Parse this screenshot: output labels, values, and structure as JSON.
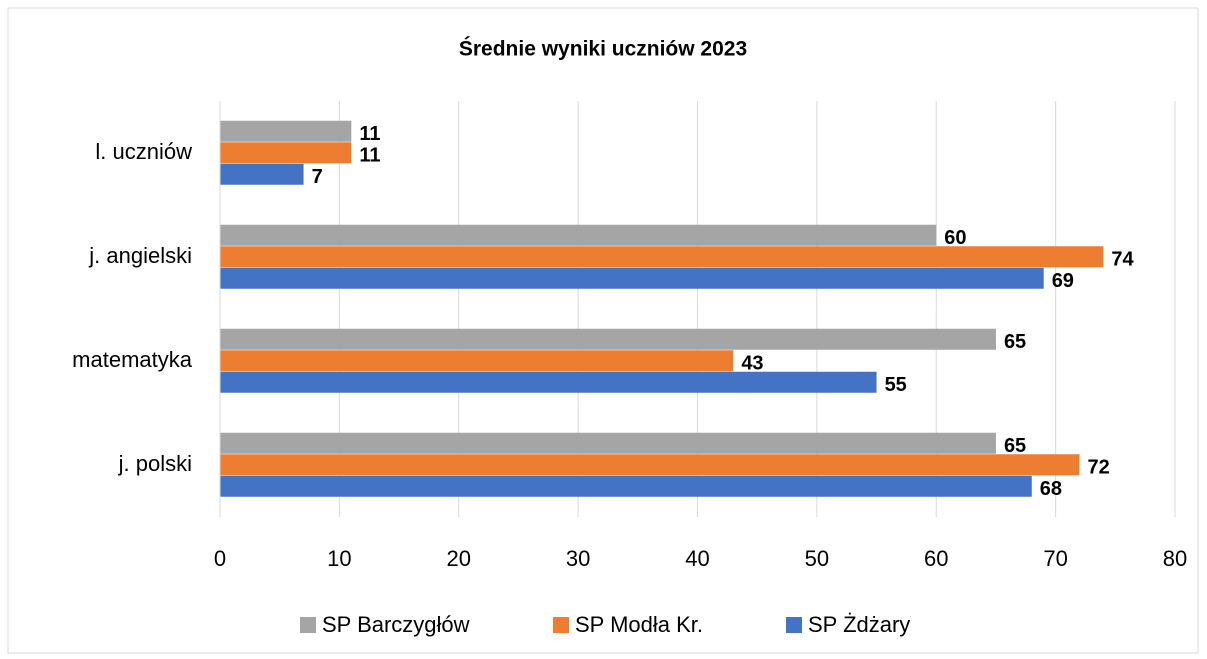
{
  "chart_data": {
    "type": "bar",
    "orientation": "horizontal",
    "title": "Średnie wyniki uczniów 2023",
    "categories": [
      "l. uczniów",
      "j. angielski",
      "matematyka",
      "j. polski"
    ],
    "series": [
      {
        "name": "SP Barczygłów",
        "color": "#a5a5a5",
        "values": [
          11,
          60,
          65,
          65
        ]
      },
      {
        "name": "SP Modła Kr.",
        "color": "#ed7d31",
        "values": [
          11,
          74,
          43,
          72
        ]
      },
      {
        "name": "SP Żdżary",
        "color": "#4472c4",
        "values": [
          7,
          69,
          55,
          68
        ]
      }
    ],
    "xlim": [
      0,
      80
    ],
    "xticks": [
      0,
      10,
      20,
      30,
      40,
      50,
      60,
      70,
      80
    ],
    "grid": true,
    "legend": "bottom"
  }
}
